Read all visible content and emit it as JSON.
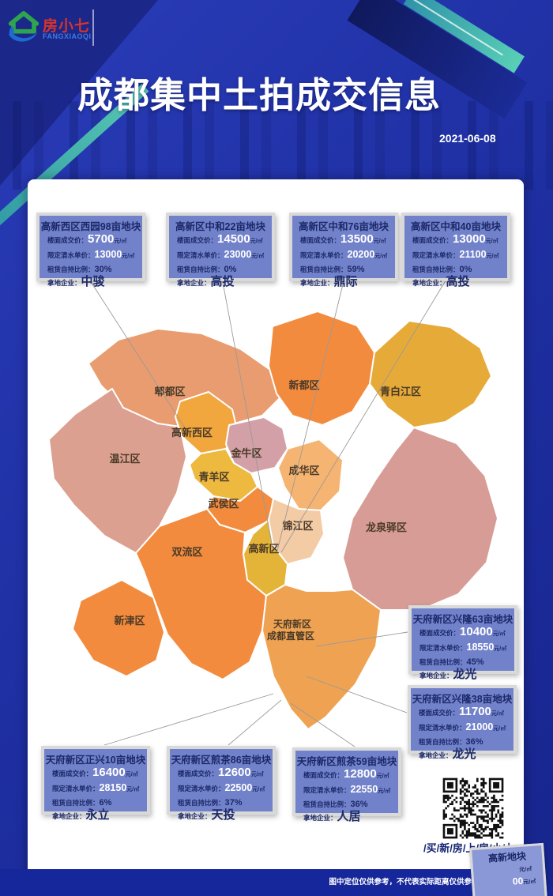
{
  "header": {
    "title": "成都集中土拍成交信息",
    "date": "2021-06-08"
  },
  "logo": {
    "name": "房小七",
    "latin": "FANGXIAOQI"
  },
  "card_labels": {
    "floor_price": "楼面成交价：",
    "limit_price": "限定清水单价：",
    "self_hold": "租赁自持比例：",
    "buyer": "拿地企业：",
    "unit": "元/㎡"
  },
  "cards": [
    {
      "title": "高新西区西园98亩地块",
      "floor_price": "5700",
      "limit_price": "13000",
      "self_hold": "30%",
      "buyer": "中骏"
    },
    {
      "title": "高新区中和22亩地块",
      "floor_price": "14500",
      "limit_price": "23000",
      "self_hold": "0%",
      "buyer": "高投"
    },
    {
      "title": "高新区中和76亩地块",
      "floor_price": "13500",
      "limit_price": "20200",
      "self_hold": "59%",
      "buyer": "鼎际"
    },
    {
      "title": "高新区中和40亩地块",
      "floor_price": "13000",
      "limit_price": "21100",
      "self_hold": "0%",
      "buyer": "高投"
    },
    {
      "title": "天府新区兴隆63亩地块",
      "floor_price": "10400",
      "limit_price": "18550",
      "self_hold": "45%",
      "buyer": "龙光"
    },
    {
      "title": "天府新区兴隆38亩地块",
      "floor_price": "11700",
      "limit_price": "21000",
      "self_hold": "36%",
      "buyer": "龙光"
    },
    {
      "title": "天府新区正兴10亩地块",
      "floor_price": "16400",
      "limit_price": "28150",
      "self_hold": "6%",
      "buyer": "永立"
    },
    {
      "title": "天府新区煎茶86亩地块",
      "floor_price": "12600",
      "limit_price": "22500",
      "self_hold": "37%",
      "buyer": "天投"
    },
    {
      "title": "天府新区煎茶59亩地块",
      "floor_price": "12800",
      "limit_price": "22550",
      "self_hold": "36%",
      "buyer": "人居"
    }
  ],
  "partial_card": {
    "title": "高新地块",
    "line1": "元/㎡",
    "value": "00",
    "unit": "元/㎡"
  },
  "qr": {
    "caption": "/买/新/房/上/房/小/七"
  },
  "footer": {
    "disclaimer": "图中定位仅供参考，不代表实际距离仅供参考实际距离"
  },
  "map": {
    "districts": [
      {
        "name": "郫都区",
        "color": "#E99C6F"
      },
      {
        "name": "新都区",
        "color": "#F28B3D"
      },
      {
        "name": "青白江区",
        "color": "#E6AA38"
      },
      {
        "name": "龙泉驿区",
        "color": "#D79C95"
      },
      {
        "name": "温江区",
        "color": "#DCA090"
      },
      {
        "name": "高新西区",
        "color": "#F1A63E"
      },
      {
        "name": "金牛区",
        "color": "#D2A0A6"
      },
      {
        "name": "成华区",
        "color": "#F5B472"
      },
      {
        "name": "青羊区",
        "color": "#EDB93F"
      },
      {
        "name": "武侯区",
        "color": "#F28B3D"
      },
      {
        "name": "锦江区",
        "color": "#F3CBA5"
      },
      {
        "name": "高新区",
        "color": "#E3B438"
      },
      {
        "name": "双流区",
        "color": "#F28B3D"
      },
      {
        "name": "新津区",
        "color": "#F28B3D"
      },
      {
        "name": "天府新区成都直管区",
        "color": "#EFA352",
        "label_lines": [
          "天府新区",
          "成都直管区"
        ]
      }
    ]
  },
  "colors": {
    "background": "#1E2FA2",
    "panel": "#FFFFFF",
    "card_bg": "#7282CA",
    "card_border": "#D9D9D9",
    "card_text": "#1C2A6E",
    "accent_teal": "#45BCAA",
    "logo_red": "#D6342C",
    "logo_blue": "#3D7BE0"
  }
}
